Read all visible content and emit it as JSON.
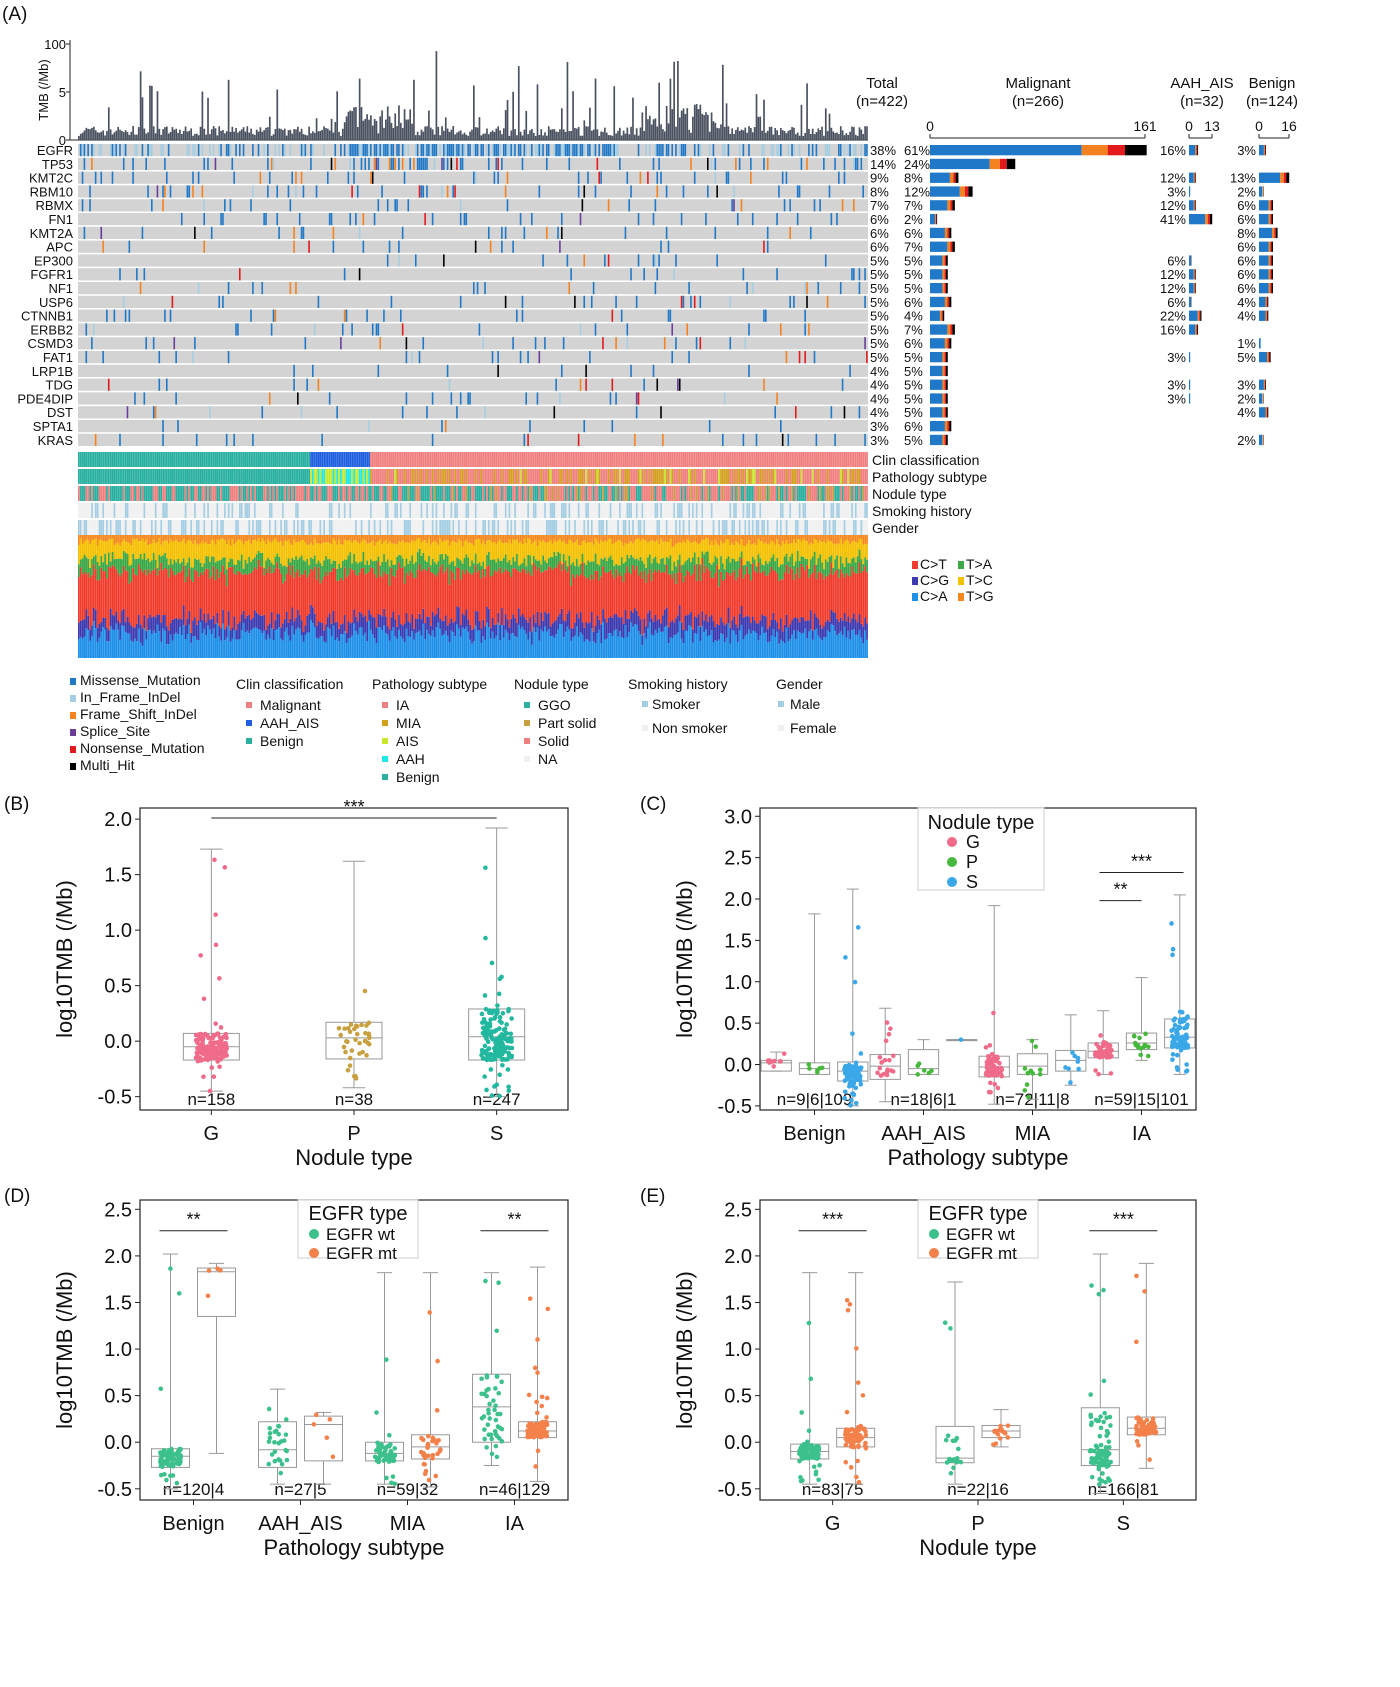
{
  "panel_labels": [
    "(A)",
    "(B)",
    "(C)",
    "(D)",
    "(E)"
  ],
  "colors": {
    "missense": "#1f78c8",
    "inframe": "#a6cee3",
    "frameshift": "#f58220",
    "splice": "#6a3d9a",
    "nonsense": "#e31a1c",
    "multihit": "#000000",
    "grid_bg": "#d3d3d3",
    "tmb_bar": "#4a5160",
    "malignant": "#f08080",
    "aah_ais": "#1f5fe0",
    "benign_clin": "#2ab0a0",
    "IA": "#f08080",
    "MIA": "#d4a020",
    "AIS": "#c8e830",
    "AAH": "#20e8e8",
    "benign_path": "#2ab0a0",
    "GGO": "#2ab0a0",
    "part_solid": "#c8a040",
    "solid": "#f08080",
    "smoker": "#a6cee3",
    "female": "#f0f0f0",
    "c2t": "#f03c2c",
    "c2g": "#3d3ab0",
    "c2a": "#1e90e8",
    "t2a": "#3aa846",
    "t2c": "#f4c000",
    "t2g": "#f4881e",
    "pt_G": "#f06a8a",
    "pt_P": "#46b83c",
    "pt_S": "#3aa8e8",
    "pt_B_S": "#22b8a0",
    "pt_B_P": "#c8a040",
    "egfr_wt": "#3cc08c",
    "egfr_mt": "#f4804a"
  },
  "panelA": {
    "tmb_axis_label": "TMB (/Mb)",
    "tmb_ticks": [
      "100",
      "5",
      "0"
    ],
    "genes": [
      "EGFR",
      "TP53",
      "KMT2C",
      "RBM10",
      "RBMX",
      "FN1",
      "KMT2A",
      "APC",
      "EP300",
      "FGFR1",
      "NF1",
      "USP6",
      "CTNNB1",
      "ERBB2",
      "CSMD3",
      "FAT1",
      "LRP1B",
      "TDG",
      "PDE4DIP",
      "DST",
      "SPTA1",
      "KRAS"
    ],
    "total_pct": [
      "38%",
      "14%",
      "9%",
      "8%",
      "7%",
      "6%",
      "6%",
      "6%",
      "5%",
      "5%",
      "5%",
      "5%",
      "5%",
      "5%",
      "5%",
      "5%",
      "4%",
      "4%",
      "4%",
      "4%",
      "3%",
      "3%"
    ],
    "malignant_pct": [
      "61%",
      "24%",
      "8%",
      "12%",
      "7%",
      "2%",
      "6%",
      "7%",
      "5%",
      "5%",
      "5%",
      "6%",
      "4%",
      "7%",
      "6%",
      "5%",
      "5%",
      "5%",
      "5%",
      "5%",
      "6%",
      "5%"
    ],
    "aah_pct": [
      "16%",
      "",
      "12%",
      "3%",
      "12%",
      "41%",
      "",
      "",
      "6%",
      "12%",
      "12%",
      "6%",
      "22%",
      "16%",
      "",
      "3%",
      "",
      "3%",
      "3%",
      "",
      "",
      ""
    ],
    "benign_pct": [
      "3%",
      "",
      "13%",
      "2%",
      "6%",
      "6%",
      "8%",
      "6%",
      "6%",
      "6%",
      "6%",
      "4%",
      "4%",
      "",
      "1%",
      "5%",
      "",
      "3%",
      "2%",
      "4%",
      "",
      "2%"
    ],
    "group_headers": [
      {
        "name": "Total",
        "n": "(n=422)"
      },
      {
        "name": "Malignant",
        "n": "(n=266)"
      },
      {
        "name": "AAH_AIS",
        "n": "(n=32)"
      },
      {
        "name": "Benign",
        "n": "(n=124)"
      }
    ],
    "malignant_axis": [
      "0",
      "161"
    ],
    "aah_axis": [
      "0",
      "13"
    ],
    "benign_axis": [
      "0",
      "16"
    ],
    "track_labels": [
      "Clin classification",
      "Pathology subtype",
      "Nodule type",
      "Smoking history",
      "Gender"
    ],
    "sig_legend": [
      "C>T",
      "T>A",
      "C>G",
      "T>C",
      "C>A",
      "T>G"
    ],
    "legend_mutation": [
      "Missense_Mutation",
      "In_Frame_InDel",
      "Frame_Shift_InDel",
      "Splice_Site",
      "Nonsense_Mutation",
      "Multi_Hit"
    ],
    "legend_clin": {
      "title": "Clin classification",
      "items": [
        "Malignant",
        "AAH_AIS",
        "Benign"
      ]
    },
    "legend_path": {
      "title": "Pathology subtype",
      "items": [
        "IA",
        "MIA",
        "AIS",
        "AAH",
        "Benign"
      ]
    },
    "legend_nod": {
      "title": "Nodule type",
      "items": [
        "GGO",
        "Part solid",
        "Solid",
        "NA"
      ]
    },
    "legend_smoke": {
      "title": "Smoking history",
      "items": [
        "Smoker",
        "Non smoker"
      ]
    },
    "legend_gender": {
      "title": "Gender",
      "items": [
        "Male",
        "Female"
      ]
    }
  },
  "chart_data": [
    {
      "type": "box",
      "panel": "B",
      "xlabel": "Nodule type",
      "ylabel": "log10TMB (/Mb)",
      "ylim": [
        -0.62,
        2.1
      ],
      "yticks": [
        "-0.5",
        "0.0",
        "0.5",
        "1.0",
        "1.5",
        "2.0"
      ],
      "categories": [
        "G",
        "P",
        "S"
      ],
      "n_labels": [
        "n=158",
        "n=38",
        "n=247"
      ],
      "boxes": [
        {
          "q1": -0.17,
          "median": -0.05,
          "q3": 0.07,
          "min": -0.45,
          "max": 1.73
        },
        {
          "q1": -0.16,
          "median": 0.03,
          "q3": 0.17,
          "min": -0.42,
          "max": 1.62
        },
        {
          "q1": -0.17,
          "median": 0.04,
          "q3": 0.29,
          "min": -0.5,
          "max": 1.92
        }
      ],
      "significance": [
        {
          "label": "***",
          "from": 0,
          "to": 2,
          "y": 2.01
        }
      ]
    },
    {
      "type": "box",
      "panel": "C",
      "xlabel": "Pathology subtype",
      "ylabel": "log10TMB (/Mb)",
      "ylim": [
        -0.55,
        3.1
      ],
      "yticks": [
        "-0.5",
        "0.0",
        "0.5",
        "1.0",
        "1.5",
        "2.0",
        "2.5",
        "3.0"
      ],
      "categories": [
        "Benign",
        "AAH_AIS",
        "MIA",
        "IA"
      ],
      "legend_title": "Nodule type",
      "series_names": [
        "G",
        "P",
        "S"
      ],
      "n_labels": [
        "n=9|6|109",
        "n=18|6|1",
        "n=72|11|8",
        "n=59|15|101"
      ],
      "boxes": [
        [
          {
            "q1": -0.08,
            "median": 0.02,
            "q3": 0.05,
            "min": -0.08,
            "max": 0.15
          },
          {
            "q1": -0.12,
            "median": -0.05,
            "q3": 0.02,
            "min": -0.12,
            "max": 1.82
          },
          {
            "q1": -0.2,
            "median": -0.08,
            "q3": 0.03,
            "min": -0.5,
            "max": 2.12
          }
        ],
        [
          {
            "q1": -0.18,
            "median": -0.02,
            "q3": 0.12,
            "min": -0.45,
            "max": 0.68
          },
          {
            "q1": -0.12,
            "median": -0.05,
            "q3": 0.18,
            "min": -0.12,
            "max": 0.3
          },
          {
            "q1": 0.3,
            "median": 0.3,
            "q3": 0.3,
            "min": 0.3,
            "max": 0.3
          }
        ],
        [
          {
            "q1": -0.15,
            "median": -0.03,
            "q3": 0.1,
            "min": -0.48,
            "max": 1.92
          },
          {
            "q1": -0.12,
            "median": -0.02,
            "q3": 0.13,
            "min": -0.42,
            "max": 0.3
          },
          {
            "q1": -0.08,
            "median": 0.05,
            "q3": 0.17,
            "min": -0.25,
            "max": 0.6
          }
        ],
        [
          {
            "q1": 0.08,
            "median": 0.16,
            "q3": 0.26,
            "min": -0.12,
            "max": 0.65
          },
          {
            "q1": 0.18,
            "median": 0.26,
            "q3": 0.38,
            "min": 0.05,
            "max": 1.05
          },
          {
            "q1": 0.2,
            "median": 0.33,
            "q3": 0.55,
            "min": -0.12,
            "max": 2.05
          }
        ]
      ],
      "significance": [
        {
          "label": "***",
          "y": 2.32
        },
        {
          "label": "**",
          "y": 1.98
        }
      ]
    },
    {
      "type": "box",
      "panel": "D",
      "xlabel": "Pathology subtype",
      "ylabel": "log10TMB (/Mb)",
      "ylim": [
        -0.62,
        2.6
      ],
      "yticks": [
        "-0.5",
        "0.0",
        "0.5",
        "1.0",
        "1.5",
        "2.0",
        "2.5"
      ],
      "categories": [
        "Benign",
        "AAH_AIS",
        "MIA",
        "IA"
      ],
      "legend_title": "EGFR type",
      "series_names": [
        "EGFR wt",
        "EGFR mt"
      ],
      "n_labels": [
        "n=120|4",
        "n=27|5",
        "n=59|32",
        "n=46|129"
      ],
      "boxes": [
        [
          {
            "q1": -0.27,
            "median": -0.15,
            "q3": -0.07,
            "min": -0.5,
            "max": 2.02
          },
          {
            "q1": 1.35,
            "median": 1.83,
            "q3": 1.87,
            "min": -0.12,
            "max": 1.92
          }
        ],
        [
          {
            "q1": -0.27,
            "median": -0.08,
            "q3": 0.22,
            "min": -0.45,
            "max": 0.57
          },
          {
            "q1": -0.2,
            "median": 0.19,
            "q3": 0.28,
            "min": -0.45,
            "max": 0.32
          }
        ],
        [
          {
            "q1": -0.2,
            "median": -0.12,
            "q3": 0.0,
            "min": -0.45,
            "max": 1.82
          },
          {
            "q1": -0.18,
            "median": -0.05,
            "q3": 0.08,
            "min": -0.48,
            "max": 1.82
          }
        ],
        [
          {
            "q1": 0.0,
            "median": 0.38,
            "q3": 0.73,
            "min": -0.25,
            "max": 1.82
          },
          {
            "q1": 0.05,
            "median": 0.12,
            "q3": 0.22,
            "min": -0.42,
            "max": 1.88
          }
        ]
      ],
      "significance": [
        {
          "label": "**",
          "group": 0,
          "y": 2.27
        },
        {
          "label": "**",
          "group": 3,
          "y": 2.27
        }
      ]
    },
    {
      "type": "box",
      "panel": "E",
      "xlabel": "Nodule type",
      "ylabel": "log10TMB (/Mb)",
      "ylim": [
        -0.62,
        2.6
      ],
      "yticks": [
        "-0.5",
        "0.0",
        "0.5",
        "1.0",
        "1.5",
        "2.0",
        "2.5"
      ],
      "categories": [
        "G",
        "P",
        "S"
      ],
      "legend_title": "EGFR type",
      "series_names": [
        "EGFR wt",
        "EGFR mt"
      ],
      "n_labels": [
        "n=83|75",
        "n=22|16",
        "n=166|81"
      ],
      "boxes": [
        [
          {
            "q1": -0.18,
            "median": -0.1,
            "q3": -0.02,
            "min": -0.45,
            "max": 1.82
          },
          {
            "q1": -0.05,
            "median": 0.05,
            "q3": 0.15,
            "min": -0.45,
            "max": 1.82
          }
        ],
        [
          {
            "q1": -0.22,
            "median": -0.17,
            "q3": 0.17,
            "min": -0.45,
            "max": 1.72
          },
          {
            "q1": 0.05,
            "median": 0.12,
            "q3": 0.18,
            "min": -0.05,
            "max": 0.35
          }
        ],
        [
          {
            "q1": -0.25,
            "median": -0.08,
            "q3": 0.37,
            "min": -0.55,
            "max": 2.02
          },
          {
            "q1": 0.08,
            "median": 0.15,
            "q3": 0.27,
            "min": -0.28,
            "max": 1.92
          }
        ]
      ],
      "significance": [
        {
          "label": "***",
          "group": 0,
          "y": 2.27
        },
        {
          "label": "***",
          "group": 2,
          "y": 2.27
        }
      ]
    }
  ]
}
